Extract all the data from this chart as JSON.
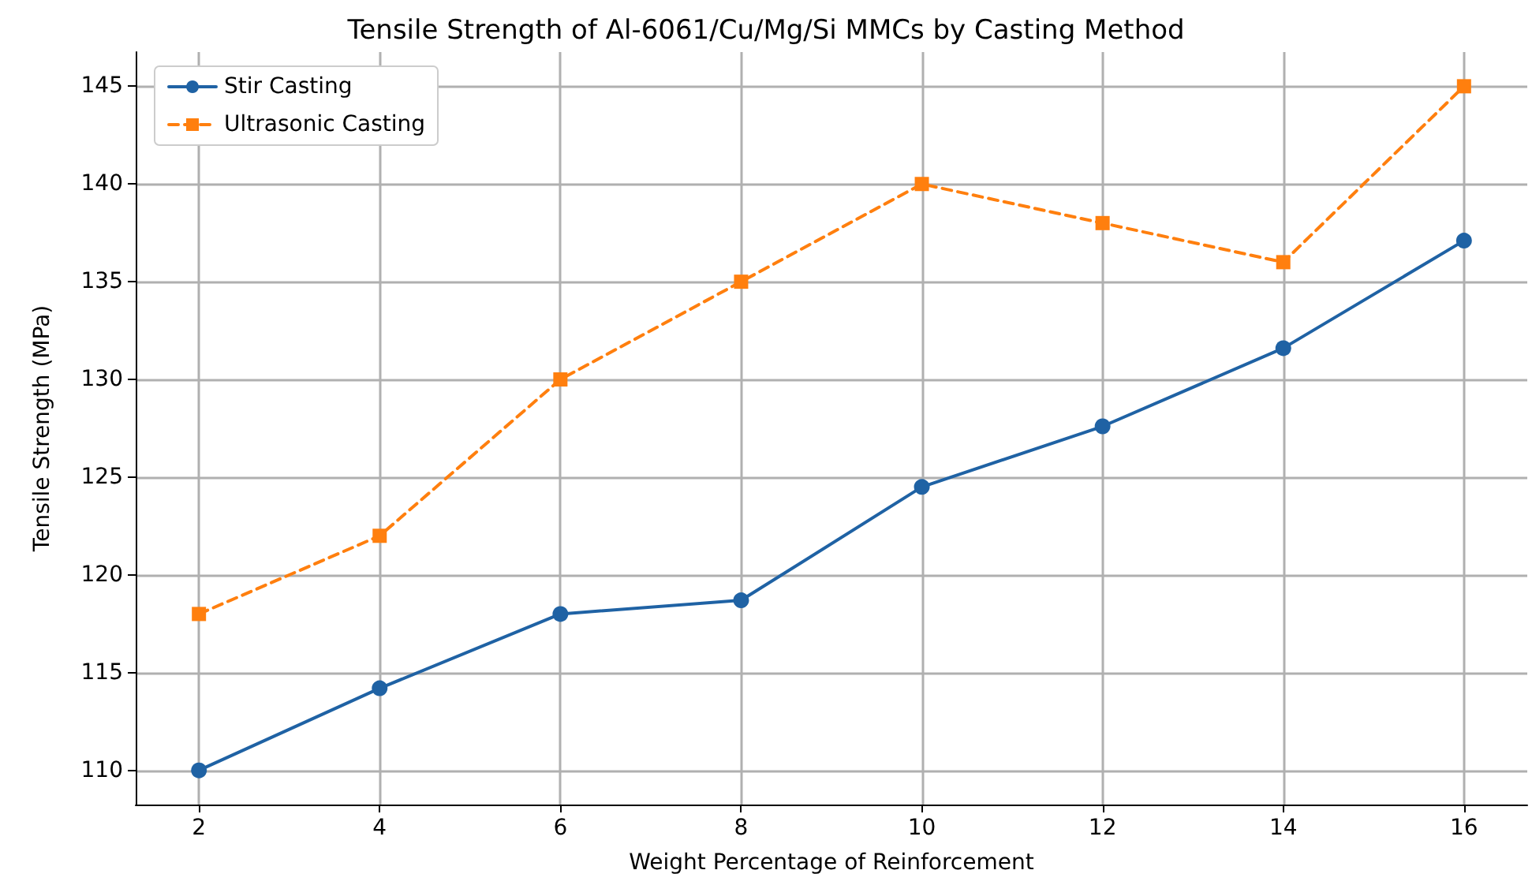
{
  "chart_data": {
    "type": "line",
    "title": "Tensile Strength of Al-6061/Cu/Mg/Si MMCs by Casting Method",
    "xlabel": "Weight Percentage of Reinforcement",
    "ylabel": "Tensile Strength (MPa)",
    "x": [
      2,
      4,
      6,
      8,
      10,
      12,
      14,
      16
    ],
    "series": [
      {
        "name": "Stir Casting",
        "color": "#1f62a4",
        "marker": "circle",
        "line_style": "solid",
        "values": [
          110,
          114.2,
          118,
          118.7,
          124.5,
          127.6,
          131.6,
          137.1
        ]
      },
      {
        "name": "Ultrasonic Casting",
        "color": "#ff7f0e",
        "marker": "square",
        "line_style": "dashed",
        "values": [
          118,
          122,
          130,
          135,
          140,
          138,
          136,
          145
        ]
      }
    ],
    "xlim": [
      1.3,
      16.7
    ],
    "xticks": [
      2,
      4,
      6,
      8,
      10,
      12,
      14,
      16
    ],
    "ylim": [
      108.25,
      146.75
    ],
    "yticks": [
      110,
      115,
      120,
      125,
      130,
      135,
      140,
      145
    ],
    "grid": true,
    "legend": "top left"
  }
}
